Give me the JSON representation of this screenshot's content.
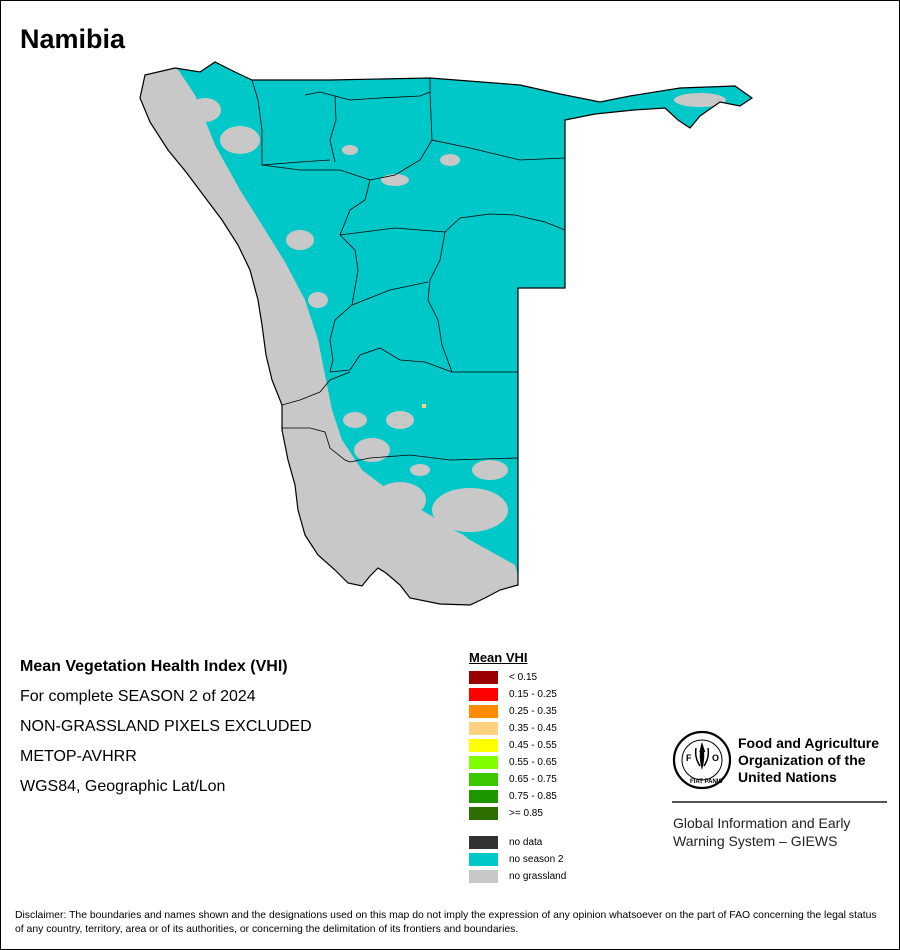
{
  "map_title": "Namibia",
  "info": {
    "heading": "Mean Vegetation Health Index (VHI)",
    "season": "For complete SEASON 2 of 2024",
    "exclusion": "NON-GRASSLAND PIXELS EXCLUDED",
    "sensor": "METOP-AVHRR",
    "projection": "WGS84, Geographic Lat/Lon"
  },
  "legend": {
    "title": "Mean VHI",
    "classes": [
      {
        "label": "< 0.15",
        "color": "#990000"
      },
      {
        "label": "0.15 - 0.25",
        "color": "#ff0000"
      },
      {
        "label": "0.25 - 0.35",
        "color": "#ff8c00"
      },
      {
        "label": "0.35 - 0.45",
        "color": "#ffd27f"
      },
      {
        "label": "0.45 - 0.55",
        "color": "#ffff00"
      },
      {
        "label": "0.55 - 0.65",
        "color": "#7fff00"
      },
      {
        "label": "0.65 - 0.75",
        "color": "#3cc800"
      },
      {
        "label": "0.75 - 0.85",
        "color": "#1e9600"
      },
      {
        "label": ">= 0.85",
        "color": "#2d6e00"
      }
    ],
    "other": [
      {
        "label": "no data",
        "color": "#333333"
      },
      {
        "label": "no season 2",
        "color": "#00c8c8"
      },
      {
        "label": "no grassland",
        "color": "#c8c8c8"
      }
    ]
  },
  "org": {
    "logo_letters": "FAO",
    "logo_motto": "FIAT PANIS",
    "name_lines": [
      "Food and Agriculture",
      "Organization of the",
      "United Nations"
    ],
    "system_lines": [
      "Global Information and Early",
      "Warning System – GIEWS"
    ]
  },
  "disclaimer": "Disclaimer: The boundaries and names shown and the designations used on this map do not imply the expression of any opinion whatsoever on the part of FAO concerning the legal status of any country, territory, area or of its authorities, or concerning the delimitation of its frontiers and boundaries."
}
